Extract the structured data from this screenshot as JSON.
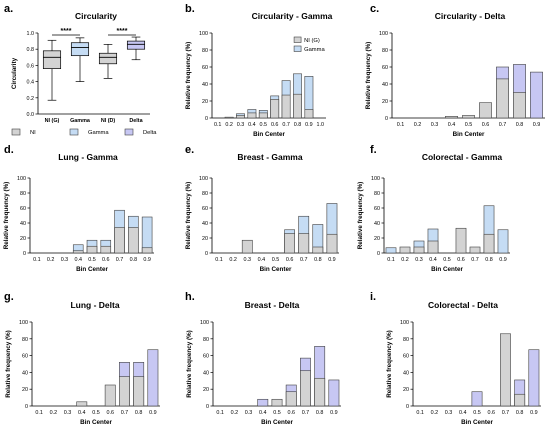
{
  "colors": {
    "ni": "#d3d3d3",
    "gamma": "#c5dcf4",
    "delta": "#c7c7f3",
    "edge": "#404040"
  },
  "chart_data": [
    {
      "id": "a",
      "panel_label": "a.",
      "type": "box",
      "title": "Circularity",
      "xlabel": "",
      "ylabel": "Circularity",
      "ylim": [
        0,
        1.0
      ],
      "yticks": [
        "0.0",
        "0.2",
        "0.4",
        "0.6",
        "0.8",
        "1.0"
      ],
      "categories": [
        "NI (G)",
        "Gamma",
        "NI (D)",
        "Delta"
      ],
      "boxes": [
        {
          "group": "ni",
          "min": 0.17,
          "q1": 0.56,
          "median": 0.7,
          "q3": 0.78,
          "max": 0.91
        },
        {
          "group": "gamma",
          "min": 0.4,
          "q1": 0.72,
          "median": 0.82,
          "q3": 0.88,
          "max": 0.94
        },
        {
          "group": "ni",
          "min": 0.44,
          "q1": 0.62,
          "median": 0.7,
          "q3": 0.75,
          "max": 0.86
        },
        {
          "group": "delta",
          "min": 0.67,
          "q1": 0.8,
          "median": 0.86,
          "q3": 0.9,
          "max": 0.95
        }
      ],
      "significance": [
        {
          "from": 0,
          "to": 1,
          "label": "****"
        },
        {
          "from": 2,
          "to": 3,
          "label": "****"
        }
      ],
      "legend": [
        {
          "label": "NI",
          "group": "ni"
        },
        {
          "label": "Gamma",
          "group": "gamma"
        },
        {
          "label": "Delta",
          "group": "delta"
        }
      ]
    },
    {
      "id": "b",
      "panel_label": "b.",
      "type": "bar",
      "title": "Circularity - Gamma",
      "xlabel": "Bin Center",
      "ylabel": "Relative frequency (%)",
      "ylim": [
        0,
        100
      ],
      "yticks": [
        "0",
        "20",
        "40",
        "60",
        "80",
        "100"
      ],
      "categories": [
        "0.1",
        "0.2",
        "0.3",
        "0.4",
        "0.5",
        "0.6",
        "0.7",
        "0.8",
        "0.9",
        "1.0"
      ],
      "series": [
        {
          "name": "NI (G)",
          "group": "ni",
          "values": [
            0,
            1,
            3,
            6,
            6,
            22,
            27,
            28,
            10,
            0
          ]
        },
        {
          "name": "Gamma",
          "group": "gamma",
          "values": [
            0,
            0,
            5,
            10,
            9,
            26,
            44,
            52,
            49,
            0
          ]
        }
      ],
      "legend": [
        {
          "label": "NI (G)",
          "group": "ni"
        },
        {
          "label": "Gamma",
          "group": "gamma"
        }
      ]
    },
    {
      "id": "c",
      "panel_label": "c.",
      "type": "bar",
      "title": "Circularity - Delta",
      "xlabel": "Bin Center",
      "ylabel": "Relative frequency (%)",
      "ylim": [
        0,
        100
      ],
      "yticks": [
        "0",
        "20",
        "40",
        "60",
        "80",
        "100"
      ],
      "categories": [
        "0.1",
        "0.2",
        "0.3",
        "0.4",
        "0.5",
        "0.6",
        "0.7",
        "0.8",
        "0.9"
      ],
      "series": [
        {
          "name": "NI",
          "group": "ni",
          "values": [
            0,
            0,
            0,
            2,
            3,
            18,
            46,
            30,
            0
          ]
        },
        {
          "name": "Delta",
          "group": "delta",
          "values": [
            0,
            0,
            0,
            0,
            0,
            0,
            60,
            63,
            54
          ]
        }
      ]
    },
    {
      "id": "d",
      "panel_label": "d.",
      "type": "bar",
      "title": "Lung - Gamma",
      "xlabel": "Bin Center",
      "ylabel": "Relative frequency (%)",
      "ylim": [
        0,
        100
      ],
      "yticks": [
        "0",
        "20",
        "40",
        "60",
        "80",
        "100"
      ],
      "categories": [
        "0.1",
        "0.2",
        "0.3",
        "0.4",
        "0.5",
        "0.6",
        "0.7",
        "0.8",
        "0.9"
      ],
      "series": [
        {
          "name": "NI",
          "group": "ni",
          "values": [
            0,
            0,
            0,
            3,
            9,
            9,
            34,
            34,
            7
          ]
        },
        {
          "name": "Gamma",
          "group": "gamma",
          "values": [
            0,
            0,
            0,
            11,
            17,
            17,
            57,
            49,
            48
          ]
        }
      ]
    },
    {
      "id": "e",
      "panel_label": "e.",
      "type": "bar",
      "title": "Breast - Gamma",
      "xlabel": "Bin Center",
      "ylabel": "Relative frequency (%)",
      "ylim": [
        0,
        100
      ],
      "yticks": [
        "0",
        "20",
        "40",
        "60",
        "80",
        "100"
      ],
      "categories": [
        "0.1",
        "0.2",
        "0.3",
        "0.4",
        "0.5",
        "0.6",
        "0.7",
        "0.8",
        "0.9"
      ],
      "series": [
        {
          "name": "NI",
          "group": "ni",
          "values": [
            0,
            0,
            17,
            0,
            0,
            26,
            26,
            8,
            25
          ]
        },
        {
          "name": "Gamma",
          "group": "gamma",
          "values": [
            0,
            0,
            0,
            0,
            0,
            31,
            49,
            38,
            66
          ]
        }
      ]
    },
    {
      "id": "f",
      "panel_label": "f.",
      "type": "bar",
      "title": "Colorectal - Gamma",
      "xlabel": "Bin Center",
      "ylabel": "Relative frequency (%)",
      "ylim": [
        0,
        100
      ],
      "yticks": [
        "0",
        "20",
        "40",
        "60",
        "80",
        "100"
      ],
      "categories": [
        "0.1",
        "0.2",
        "0.3",
        "0.4",
        "0.5",
        "0.6",
        "0.7",
        "0.8",
        "0.9"
      ],
      "series": [
        {
          "name": "NI",
          "group": "ni",
          "values": [
            0,
            8,
            8,
            16,
            0,
            33,
            8,
            25,
            0
          ]
        },
        {
          "name": "Gamma",
          "group": "gamma",
          "values": [
            7,
            0,
            16,
            32,
            0,
            0,
            0,
            63,
            31
          ]
        }
      ]
    },
    {
      "id": "g",
      "panel_label": "g.",
      "type": "bar",
      "title": "Lung - Delta",
      "xlabel": "Bin Center",
      "ylabel": "Relative frequency (%)",
      "ylim": [
        0,
        100
      ],
      "yticks": [
        "0",
        "20",
        "40",
        "60",
        "80",
        "100"
      ],
      "categories": [
        "0.1",
        "0.2",
        "0.3",
        "0.4",
        "0.5",
        "0.6",
        "0.7",
        "0.8",
        "0.9"
      ],
      "series": [
        {
          "name": "NI",
          "group": "ni",
          "values": [
            0,
            0,
            0,
            5,
            0,
            25,
            35,
            35,
            0
          ]
        },
        {
          "name": "Delta",
          "group": "delta",
          "values": [
            0,
            0,
            0,
            0,
            0,
            0,
            52,
            52,
            67
          ]
        }
      ]
    },
    {
      "id": "h",
      "panel_label": "h.",
      "type": "bar",
      "title": "Breast - Delta",
      "xlabel": "Bin Center",
      "ylabel": "Relative frequency (%)",
      "ylim": [
        0,
        100
      ],
      "yticks": [
        "0",
        "20",
        "40",
        "60",
        "80",
        "100"
      ],
      "categories": [
        "0.1",
        "0.2",
        "0.3",
        "0.4",
        "0.5",
        "0.6",
        "0.7",
        "0.8",
        "0.9"
      ],
      "series": [
        {
          "name": "NI",
          "group": "ni",
          "values": [
            0,
            0,
            0,
            0,
            8,
            17,
            42,
            33,
            0
          ]
        },
        {
          "name": "Delta",
          "group": "delta",
          "values": [
            0,
            0,
            0,
            8,
            0,
            25,
            57,
            71,
            31
          ]
        }
      ]
    },
    {
      "id": "i",
      "panel_label": "i.",
      "type": "bar",
      "title": "Colorectal - Delta",
      "xlabel": "Bin Center",
      "ylabel": "Relative frequency (%)",
      "ylim": [
        0,
        100
      ],
      "yticks": [
        "0",
        "20",
        "40",
        "60",
        "80",
        "100"
      ],
      "categories": [
        "0.1",
        "0.2",
        "0.3",
        "0.4",
        "0.5",
        "0.6",
        "0.7",
        "0.8",
        "0.9"
      ],
      "series": [
        {
          "name": "NI",
          "group": "ni",
          "values": [
            0,
            0,
            0,
            0,
            0,
            0,
            86,
            14,
            0
          ]
        },
        {
          "name": "Delta",
          "group": "delta",
          "values": [
            0,
            0,
            0,
            0,
            17,
            0,
            0,
            31,
            67
          ]
        }
      ]
    }
  ]
}
